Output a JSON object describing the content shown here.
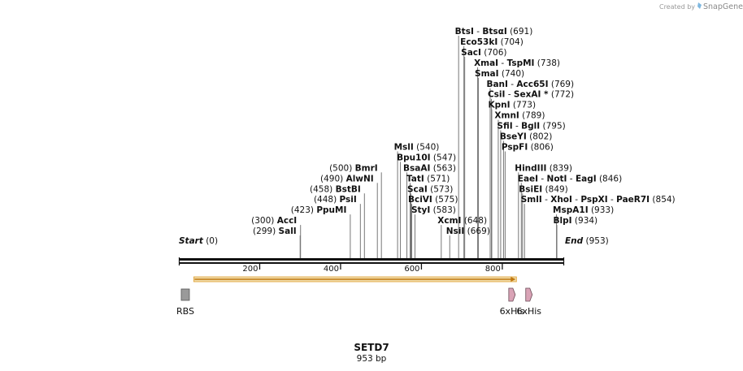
{
  "credit": {
    "prefix": "Created by",
    "brand": "SnapGene"
  },
  "title": "SETD7",
  "length_label": "953 bp",
  "sequence_length": 953,
  "axis": {
    "start": 0,
    "end": 953,
    "ticks": [
      200,
      400,
      600,
      800
    ]
  },
  "ends": [
    {
      "name": "Start",
      "pos": 0,
      "pos_label": "(0)",
      "side": "left"
    },
    {
      "name": "End",
      "pos": 953,
      "pos_label": "(953)",
      "side": "right"
    }
  ],
  "colors": {
    "bar_fill": "#f1dcaa",
    "bar_border": "#e0a030",
    "arrow": "#c07810",
    "his_fill": "#d9a3b6",
    "rbs_fill": "#9a9a9a"
  },
  "features": [
    {
      "name": "RBS",
      "type": "box",
      "start": 7,
      "end": 21,
      "label": "RBS"
    },
    {
      "name": "SETD7",
      "type": "bar",
      "start": 39,
      "end": 833,
      "label": ""
    },
    {
      "name": "6xHis",
      "type": "arrow",
      "start": 816,
      "end": 834,
      "label": "6xHis"
    },
    {
      "name": "6xHis",
      "type": "arrow",
      "start": 858,
      "end": 876,
      "label": "6xHis"
    }
  ],
  "sites": [
    {
      "enzymes": [
        "BtsI",
        "BtsαI"
      ],
      "pos": 691,
      "pos_label": "(691)",
      "side": "right",
      "row": 0
    },
    {
      "enzymes": [
        "Eco53kI"
      ],
      "pos": 704,
      "pos_label": "(704)",
      "side": "right",
      "row": 1
    },
    {
      "enzymes": [
        "SacI"
      ],
      "pos": 706,
      "pos_label": "(706)",
      "side": "right",
      "row": 2
    },
    {
      "enzymes": [
        "XmaI",
        "TspMI"
      ],
      "pos": 738,
      "pos_label": "(738)",
      "side": "right",
      "row": 3
    },
    {
      "enzymes": [
        "SmaI"
      ],
      "pos": 740,
      "pos_label": "(740)",
      "side": "right",
      "row": 4
    },
    {
      "enzymes": [
        "BanI",
        "Acc65I"
      ],
      "pos": 769,
      "pos_label": "(769)",
      "side": "right",
      "row": 5
    },
    {
      "enzymes": [
        "CsiI",
        "SexAI *"
      ],
      "pos": 772,
      "pos_label": "(772)",
      "side": "right",
      "row": 6
    },
    {
      "enzymes": [
        "KpnI"
      ],
      "pos": 773,
      "pos_label": "(773)",
      "side": "right",
      "row": 7
    },
    {
      "enzymes": [
        "XmnI"
      ],
      "pos": 789,
      "pos_label": "(789)",
      "side": "right",
      "row": 8
    },
    {
      "enzymes": [
        "SfiI",
        "BglI"
      ],
      "pos": 795,
      "pos_label": "(795)",
      "side": "right",
      "row": 9
    },
    {
      "enzymes": [
        "BseYI"
      ],
      "pos": 802,
      "pos_label": "(802)",
      "side": "right",
      "row": 10
    },
    {
      "enzymes": [
        "PspFI"
      ],
      "pos": 806,
      "pos_label": "(806)",
      "side": "right",
      "row": 11
    },
    {
      "enzymes": [
        "HindIII"
      ],
      "pos": 839,
      "pos_label": "(839)",
      "side": "right",
      "row": 13
    },
    {
      "enzymes": [
        "EaeI",
        "NotI",
        "EagI"
      ],
      "pos": 846,
      "pos_label": "(846)",
      "side": "right",
      "row": 14
    },
    {
      "enzymes": [
        "BsiEI"
      ],
      "pos": 849,
      "pos_label": "(849)",
      "side": "right",
      "row": 15
    },
    {
      "enzymes": [
        "SmlI",
        "XhoI",
        "PspXI",
        "PaeR7I"
      ],
      "pos": 854,
      "pos_label": "(854)",
      "side": "right",
      "row": 16
    },
    {
      "enzymes": [
        "MspA1I"
      ],
      "pos": 933,
      "pos_label": "(933)",
      "side": "right",
      "row": 17
    },
    {
      "enzymes": [
        "BlpI"
      ],
      "pos": 934,
      "pos_label": "(934)",
      "side": "right",
      "row": 18
    },
    {
      "enzymes": [
        "MslI"
      ],
      "pos": 540,
      "pos_label": "(540)",
      "side": "right",
      "row": 11
    },
    {
      "enzymes": [
        "Bpu10I"
      ],
      "pos": 547,
      "pos_label": "(547)",
      "side": "right",
      "row": 12
    },
    {
      "enzymes": [
        "BsaAI"
      ],
      "pos": 563,
      "pos_label": "(563)",
      "side": "right",
      "row": 13
    },
    {
      "enzymes": [
        "TatI"
      ],
      "pos": 571,
      "pos_label": "(571)",
      "side": "right",
      "row": 14
    },
    {
      "enzymes": [
        "ScaI"
      ],
      "pos": 573,
      "pos_label": "(573)",
      "side": "right",
      "row": 15
    },
    {
      "enzymes": [
        "BciVI"
      ],
      "pos": 575,
      "pos_label": "(575)",
      "side": "right",
      "row": 16
    },
    {
      "enzymes": [
        "StyI"
      ],
      "pos": 583,
      "pos_label": "(583)",
      "side": "right",
      "row": 17
    },
    {
      "enzymes": [
        "XcmI"
      ],
      "pos": 648,
      "pos_label": "(648)",
      "side": "right",
      "row": 18
    },
    {
      "enzymes": [
        "NsiI"
      ],
      "pos": 669,
      "pos_label": "(669)",
      "side": "right",
      "row": 19
    },
    {
      "enzymes": [
        "BmrI"
      ],
      "pos": 500,
      "pos_label": "(500)",
      "side": "left",
      "row": 13
    },
    {
      "enzymes": [
        "AlwNI"
      ],
      "pos": 490,
      "pos_label": "(490)",
      "side": "left",
      "row": 14
    },
    {
      "enzymes": [
        "BstBI"
      ],
      "pos": 458,
      "pos_label": "(458)",
      "side": "left",
      "row": 15
    },
    {
      "enzymes": [
        "PsiI"
      ],
      "pos": 448,
      "pos_label": "(448)",
      "side": "left",
      "row": 16
    },
    {
      "enzymes": [
        "PpuMI"
      ],
      "pos": 423,
      "pos_label": "(423)",
      "side": "left",
      "row": 17
    },
    {
      "enzymes": [
        "AccI"
      ],
      "pos": 300,
      "pos_label": "(300)",
      "side": "left",
      "row": 18
    },
    {
      "enzymes": [
        "SalI"
      ],
      "pos": 299,
      "pos_label": "(299)",
      "side": "left",
      "row": 19
    }
  ]
}
